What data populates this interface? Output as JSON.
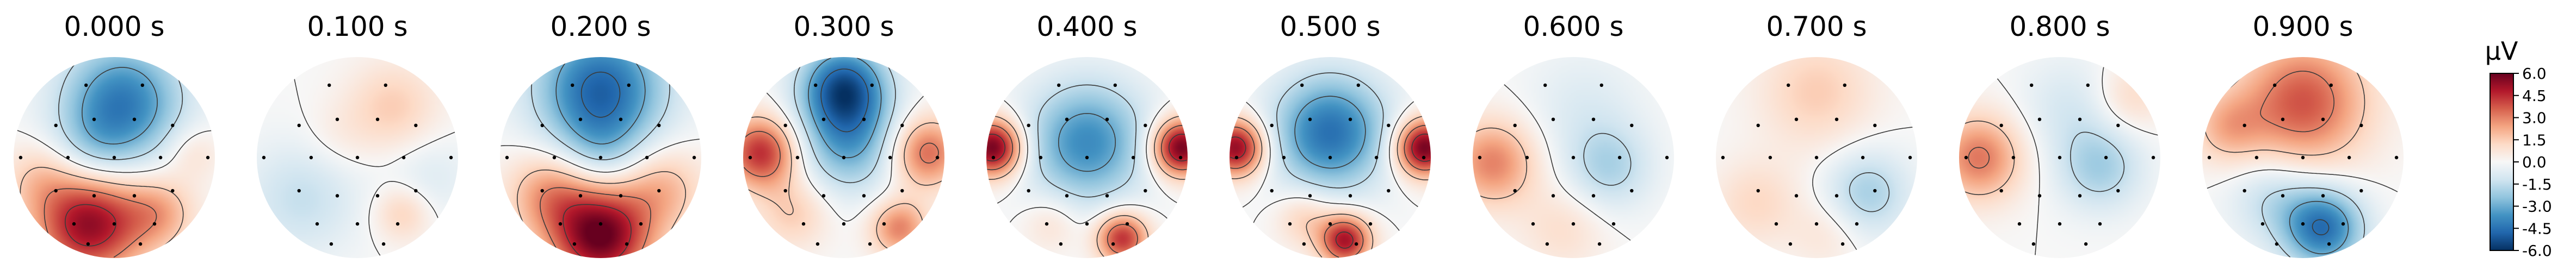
{
  "chart_data": {
    "type": "heatmap",
    "title": "",
    "panels": [
      {
        "time": "0.000 s",
        "blobs": [
          {
            "x": 0.08,
            "y": -0.55,
            "s": 0.42,
            "v": -4.2
          },
          {
            "x": -0.2,
            "y": -0.05,
            "s": 0.3,
            "v": -1.3
          },
          {
            "x": -0.25,
            "y": 0.65,
            "s": 0.38,
            "v": 5.4
          },
          {
            "x": 0.45,
            "y": 0.55,
            "s": 0.25,
            "v": 2.0
          },
          {
            "x": -0.75,
            "y": 0.2,
            "s": 0.25,
            "v": 1.2
          },
          {
            "x": 0.78,
            "y": -0.05,
            "s": 0.2,
            "v": 1.0
          }
        ]
      },
      {
        "time": "0.100 s",
        "blobs": [
          {
            "x": 0.35,
            "y": -0.5,
            "s": 0.32,
            "v": 1.5
          },
          {
            "x": -0.55,
            "y": 0.4,
            "s": 0.4,
            "v": -1.4
          },
          {
            "x": 0.45,
            "y": 0.55,
            "s": 0.2,
            "v": 1.5
          },
          {
            "x": 0.7,
            "y": 0.2,
            "s": 0.3,
            "v": -0.8
          },
          {
            "x": -0.2,
            "y": -0.2,
            "s": 0.25,
            "v": 0.5
          }
        ]
      },
      {
        "time": "0.200 s",
        "blobs": [
          {
            "x": 0.0,
            "y": -0.68,
            "s": 0.45,
            "v": -4.8
          },
          {
            "x": 0.0,
            "y": 0.78,
            "s": 0.35,
            "v": 6.0
          },
          {
            "x": -0.5,
            "y": 0.35,
            "s": 0.3,
            "v": 2.5
          },
          {
            "x": 0.6,
            "y": 0.3,
            "s": 0.3,
            "v": 2.0
          },
          {
            "x": 0.0,
            "y": -0.05,
            "s": 0.3,
            "v": -1.2
          }
        ]
      },
      {
        "time": "0.300 s",
        "blobs": [
          {
            "x": 0.0,
            "y": -0.7,
            "s": 0.3,
            "v": -5.0
          },
          {
            "x": 0.05,
            "y": -0.15,
            "s": 0.35,
            "v": -3.0
          },
          {
            "x": -0.82,
            "y": -0.05,
            "s": 0.25,
            "v": 4.5
          },
          {
            "x": 0.82,
            "y": -0.05,
            "s": 0.25,
            "v": 3.5
          },
          {
            "x": 0.55,
            "y": 0.7,
            "s": 0.2,
            "v": 3.0
          },
          {
            "x": -0.5,
            "y": 0.55,
            "s": 0.25,
            "v": 1.5
          }
        ]
      },
      {
        "time": "0.400 s",
        "blobs": [
          {
            "x": 0.0,
            "y": -0.15,
            "s": 0.42,
            "v": -3.8
          },
          {
            "x": -0.93,
            "y": -0.1,
            "s": 0.2,
            "v": 6.0
          },
          {
            "x": 0.93,
            "y": -0.1,
            "s": 0.2,
            "v": 6.0
          },
          {
            "x": 0.35,
            "y": 0.8,
            "s": 0.18,
            "v": 4.5
          },
          {
            "x": -0.35,
            "y": 0.65,
            "s": 0.2,
            "v": 1.0
          }
        ]
      },
      {
        "time": "0.500 s",
        "blobs": [
          {
            "x": 0.0,
            "y": -0.25,
            "s": 0.4,
            "v": -4.5
          },
          {
            "x": -0.93,
            "y": -0.1,
            "s": 0.2,
            "v": 5.5
          },
          {
            "x": 0.93,
            "y": -0.1,
            "s": 0.2,
            "v": 6.0
          },
          {
            "x": 0.15,
            "y": 0.82,
            "s": 0.18,
            "v": 5.0
          },
          {
            "x": -0.25,
            "y": 0.6,
            "s": 0.2,
            "v": 1.5
          }
        ]
      },
      {
        "time": "0.600 s",
        "blobs": [
          {
            "x": -0.8,
            "y": 0.05,
            "s": 0.3,
            "v": 3.0
          },
          {
            "x": 0.35,
            "y": 0.1,
            "s": 0.3,
            "v": -1.8
          },
          {
            "x": 0.1,
            "y": -0.5,
            "s": 0.4,
            "v": -0.8
          },
          {
            "x": -0.1,
            "y": 0.7,
            "s": 0.3,
            "v": 1.0
          }
        ]
      },
      {
        "time": "0.700 s",
        "blobs": [
          {
            "x": 0.0,
            "y": -0.65,
            "s": 0.4,
            "v": 1.5
          },
          {
            "x": 0.5,
            "y": 0.35,
            "s": 0.3,
            "v": -2.0
          },
          {
            "x": -0.6,
            "y": 0.45,
            "s": 0.3,
            "v": 1.2
          },
          {
            "x": 0.1,
            "y": 0.75,
            "s": 0.25,
            "v": 0.8
          }
        ]
      },
      {
        "time": "0.800 s",
        "blobs": [
          {
            "x": -0.8,
            "y": 0.0,
            "s": 0.3,
            "v": 3.2
          },
          {
            "x": 0.4,
            "y": 0.1,
            "s": 0.3,
            "v": -2.0
          },
          {
            "x": 0.1,
            "y": -0.5,
            "s": 0.35,
            "v": -1.0
          },
          {
            "x": 0.7,
            "y": -0.6,
            "s": 0.25,
            "v": 1.2
          }
        ]
      },
      {
        "time": "0.900 s",
        "blobs": [
          {
            "x": 0.0,
            "y": -0.55,
            "s": 0.45,
            "v": 3.8
          },
          {
            "x": -0.75,
            "y": -0.3,
            "s": 0.25,
            "v": 1.8
          },
          {
            "x": 0.2,
            "y": 0.7,
            "s": 0.28,
            "v": -4.5
          },
          {
            "x": -0.3,
            "y": 0.4,
            "s": 0.3,
            "v": -1.5
          }
        ]
      }
    ],
    "sensors": [
      [
        -0.28,
        -0.72
      ],
      [
        0.28,
        -0.72
      ],
      [
        -0.58,
        -0.32
      ],
      [
        -0.2,
        -0.38
      ],
      [
        0.2,
        -0.38
      ],
      [
        0.58,
        -0.32
      ],
      [
        -0.93,
        0.0
      ],
      [
        -0.46,
        0.0
      ],
      [
        0.0,
        0.0
      ],
      [
        0.46,
        0.0
      ],
      [
        0.93,
        0.0
      ],
      [
        -0.58,
        0.33
      ],
      [
        -0.2,
        0.38
      ],
      [
        0.2,
        0.38
      ],
      [
        0.58,
        0.33
      ],
      [
        -0.4,
        0.66
      ],
      [
        0.0,
        0.66
      ],
      [
        0.4,
        0.66
      ],
      [
        -0.26,
        0.86
      ],
      [
        0.26,
        0.86
      ]
    ],
    "colorbar": {
      "label": "µV",
      "range": [
        -6.0,
        6.0
      ],
      "ticks": [
        "6.0",
        "4.5",
        "3.0",
        "1.5",
        "0.0",
        "-1.5",
        "-3.0",
        "-4.5",
        "-6.0"
      ],
      "colormap": "RdBu_r"
    },
    "contour_levels": [
      -4.5,
      -3.0,
      -1.5,
      0.0,
      1.5,
      3.0,
      4.5
    ]
  },
  "colors": {
    "contour": "#3a3a3a",
    "sensor": "#000000",
    "text": "#000000"
  }
}
